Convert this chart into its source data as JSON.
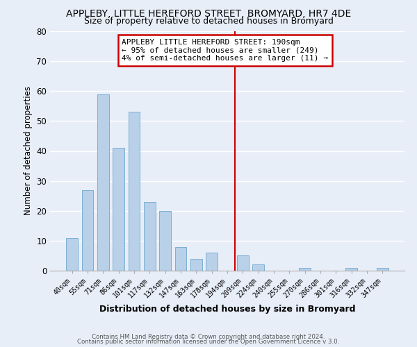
{
  "title": "APPLEBY, LITTLE HEREFORD STREET, BROMYARD, HR7 4DE",
  "subtitle": "Size of property relative to detached houses in Bromyard",
  "xlabel": "Distribution of detached houses by size in Bromyard",
  "ylabel": "Number of detached properties",
  "bar_labels": [
    "40sqm",
    "55sqm",
    "71sqm",
    "86sqm",
    "101sqm",
    "117sqm",
    "132sqm",
    "147sqm",
    "163sqm",
    "178sqm",
    "194sqm",
    "209sqm",
    "224sqm",
    "240sqm",
    "255sqm",
    "270sqm",
    "286sqm",
    "301sqm",
    "316sqm",
    "332sqm",
    "347sqm"
  ],
  "bar_values": [
    11,
    27,
    59,
    41,
    53,
    23,
    20,
    8,
    4,
    6,
    0,
    5,
    2,
    0,
    0,
    1,
    0,
    0,
    1,
    0,
    1
  ],
  "bar_color": "#b8d0e8",
  "bar_edge_color": "#7aafd4",
  "vline_x": 10.5,
  "vline_color": "#cc0000",
  "ylim": [
    0,
    80
  ],
  "yticks": [
    0,
    10,
    20,
    30,
    40,
    50,
    60,
    70,
    80
  ],
  "annotation_title": "APPLEBY LITTLE HEREFORD STREET: 190sqm",
  "annotation_line1": "← 95% of detached houses are smaller (249)",
  "annotation_line2": "4% of semi-detached houses are larger (11) →",
  "annotation_box_color": "white",
  "annotation_box_edge": "#cc0000",
  "footer1": "Contains HM Land Registry data © Crown copyright and database right 2024.",
  "footer2": "Contains public sector information licensed under the Open Government Licence v 3.0.",
  "background_color": "#e8eef8"
}
